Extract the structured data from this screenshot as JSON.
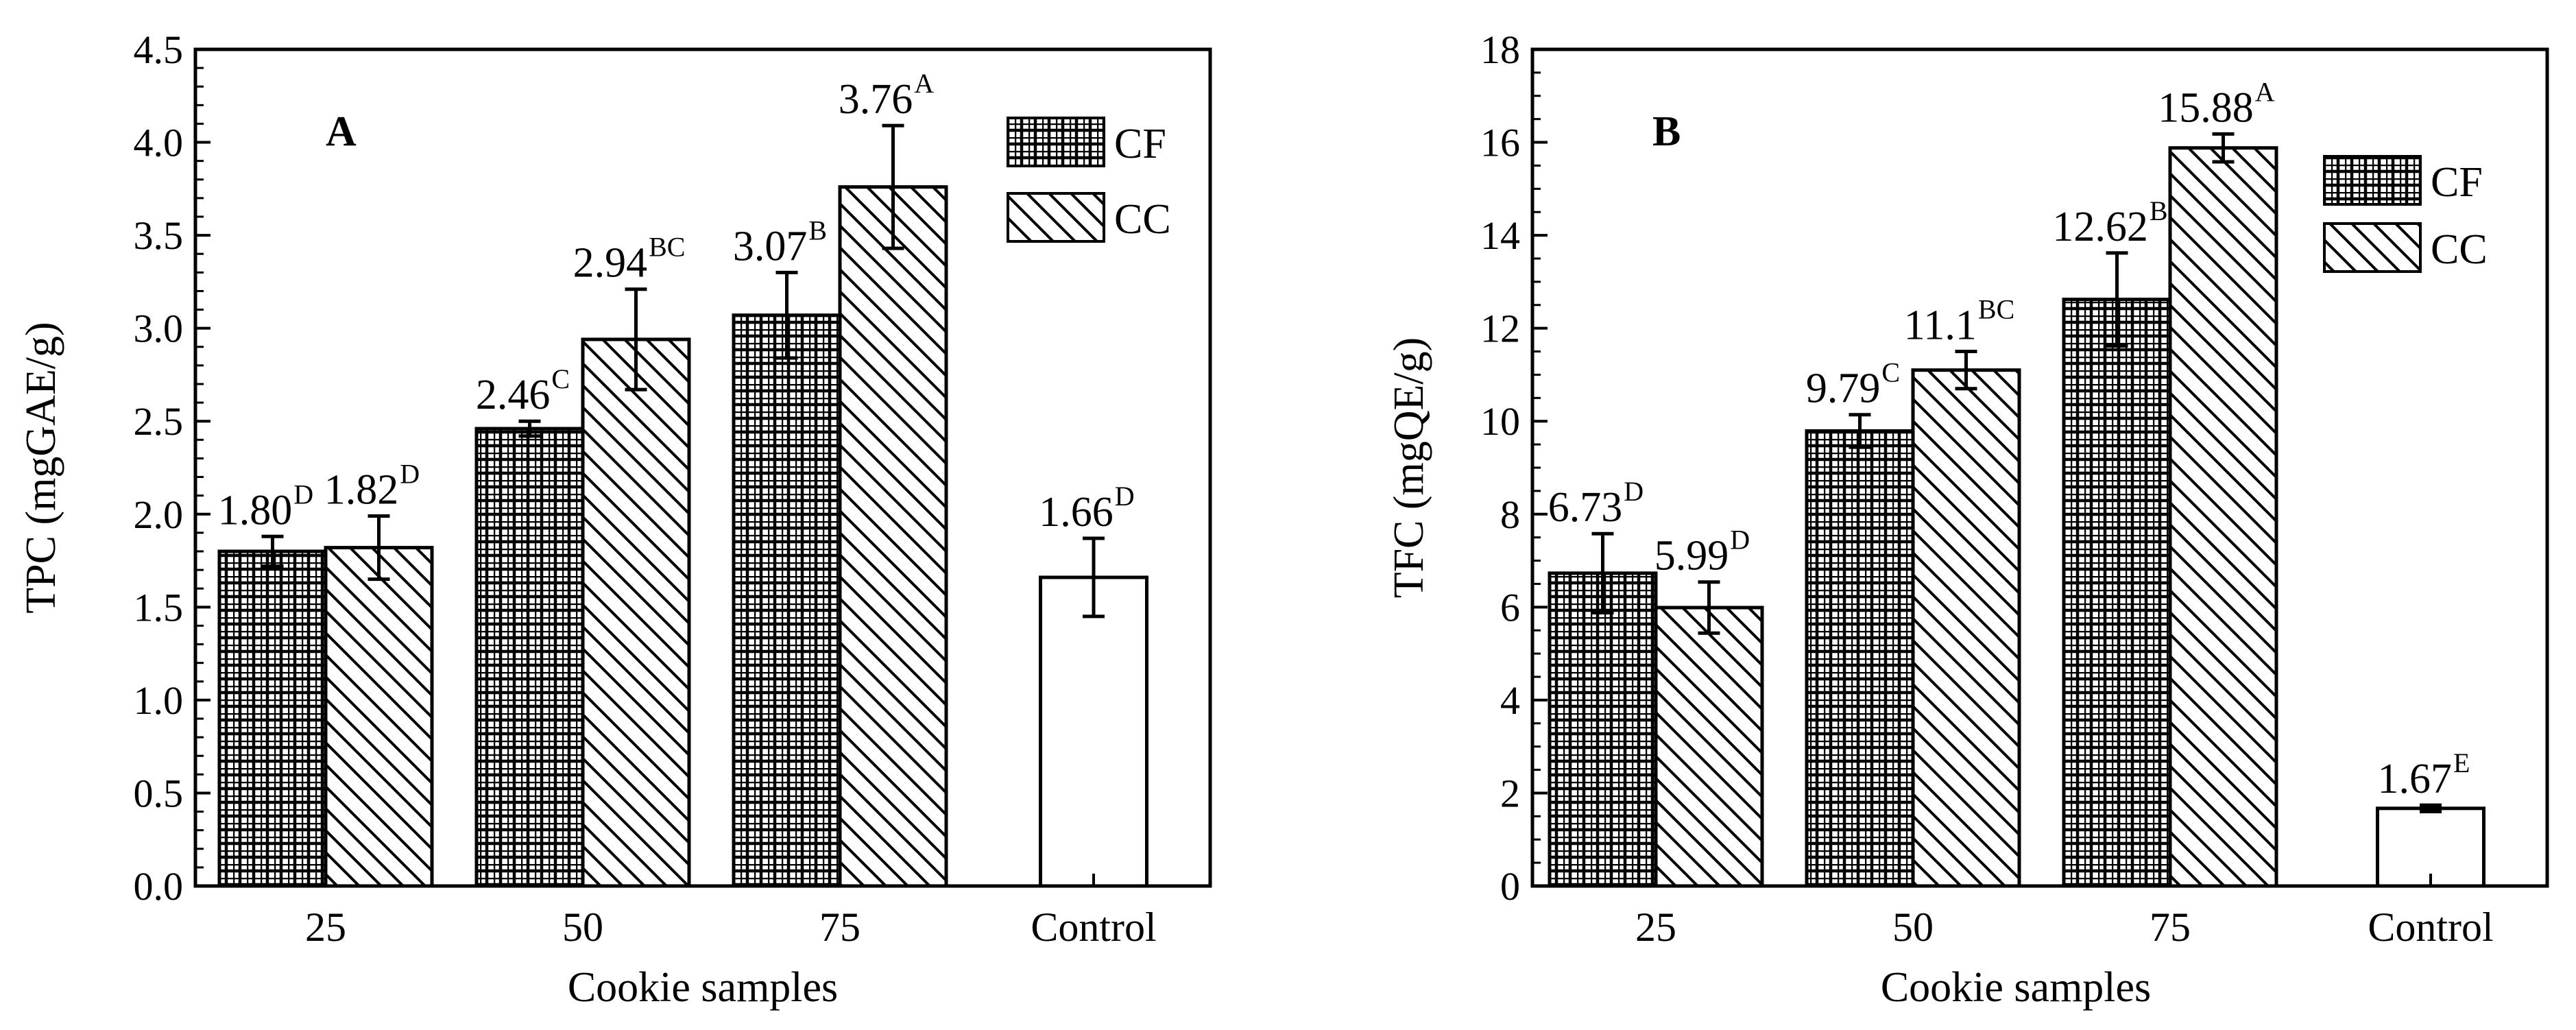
{
  "chart_data": [
    {
      "type": "bar",
      "panel_label": "A",
      "title": "",
      "xlabel": "Cookie samples",
      "ylabel": "TPC (mgGAE/g)",
      "ylim": [
        0,
        4.5
      ],
      "yticks": [
        "0.0",
        "0.5",
        "1.0",
        "1.5",
        "2.0",
        "2.5",
        "3.0",
        "3.5",
        "4.0",
        "4.5"
      ],
      "categories": [
        "25",
        "50",
        "75",
        "Control"
      ],
      "legend_position": "top-right",
      "series": [
        {
          "name": "CF",
          "pattern": "grid",
          "values": [
            1.8,
            2.46,
            3.07,
            null
          ],
          "errors": [
            0.08,
            0.04,
            0.23,
            null
          ],
          "labels": [
            "1.80",
            "2.46",
            "3.07",
            null
          ],
          "letters": [
            "D",
            "C",
            "B",
            null
          ]
        },
        {
          "name": "CC",
          "pattern": "diagonal",
          "values": [
            1.82,
            2.94,
            3.76,
            null
          ],
          "errors": [
            0.17,
            0.27,
            0.33,
            null
          ],
          "labels": [
            "1.82",
            "2.94",
            "3.76",
            null
          ],
          "letters": [
            "D",
            "BC",
            "A",
            null
          ]
        },
        {
          "name": "Control",
          "pattern": "none",
          "in_legend": false,
          "values": [
            null,
            null,
            null,
            1.66
          ],
          "errors": [
            null,
            null,
            null,
            0.21
          ],
          "labels": [
            null,
            null,
            null,
            "1.66"
          ],
          "letters": [
            null,
            null,
            null,
            "D"
          ]
        }
      ]
    },
    {
      "type": "bar",
      "panel_label": "B",
      "title": "",
      "xlabel": "Cookie samples",
      "ylabel": "TFC (mgQE/g)",
      "ylim": [
        0,
        18
      ],
      "yticks": [
        "0",
        "2",
        "4",
        "6",
        "8",
        "10",
        "12",
        "14",
        "16",
        "18"
      ],
      "categories": [
        "25",
        "50",
        "75",
        "Control"
      ],
      "legend_position": "top-right",
      "series": [
        {
          "name": "CF",
          "pattern": "grid",
          "values": [
            6.73,
            9.79,
            12.62,
            null
          ],
          "errors": [
            0.85,
            0.35,
            1.0,
            null
          ],
          "labels": [
            "6.73",
            "9.79",
            "12.62",
            null
          ],
          "letters": [
            "D",
            "C",
            "B",
            null
          ]
        },
        {
          "name": "CC",
          "pattern": "diagonal",
          "values": [
            5.99,
            11.1,
            15.88,
            null
          ],
          "errors": [
            0.55,
            0.4,
            0.3,
            null
          ],
          "labels": [
            "5.99",
            "11.1",
            "15.88",
            null
          ],
          "letters": [
            "D",
            "BC",
            "A",
            null
          ]
        },
        {
          "name": "Control",
          "pattern": "none",
          "in_legend": false,
          "values": [
            null,
            null,
            null,
            1.67
          ],
          "errors": [
            null,
            null,
            null,
            0.07
          ],
          "labels": [
            null,
            null,
            null,
            "1.67"
          ],
          "letters": [
            null,
            null,
            null,
            "E"
          ]
        }
      ]
    }
  ]
}
